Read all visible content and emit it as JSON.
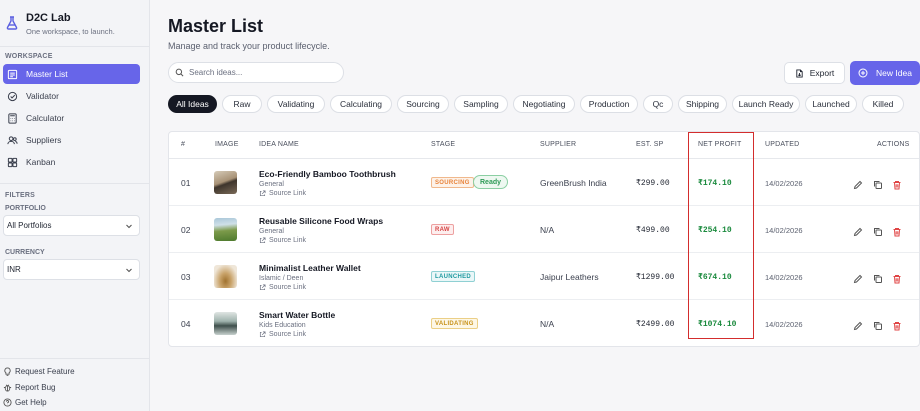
{
  "brand": {
    "title": "D2C Lab",
    "subtitle": "One workspace, to launch."
  },
  "sidebar": {
    "workspace_label": "WORKSPACE",
    "items": [
      {
        "label": "Master List",
        "icon": "list-icon",
        "active": true
      },
      {
        "label": "Validator",
        "icon": "check-circle-icon",
        "active": false
      },
      {
        "label": "Calculator",
        "icon": "calculator-icon",
        "active": false
      },
      {
        "label": "Suppliers",
        "icon": "users-icon",
        "active": false
      },
      {
        "label": "Kanban",
        "icon": "kanban-icon",
        "active": false
      }
    ],
    "filters_label": "FILTERS",
    "portfolio": {
      "label": "PORTFOLIO",
      "value": "All Portfolios"
    },
    "currency": {
      "label": "CURRENCY",
      "value": "INR"
    },
    "footer": [
      {
        "label": "Request Feature",
        "icon": "lightbulb-icon"
      },
      {
        "label": "Report Bug",
        "icon": "bug-icon"
      },
      {
        "label": "Get Help",
        "icon": "help-icon"
      }
    ]
  },
  "header": {
    "title": "Master List",
    "subtitle": "Manage and track your product lifecycle.",
    "search_placeholder": "Search ideas...",
    "export_label": "Export",
    "new_label": "New Idea"
  },
  "stage_filters": [
    "All Ideas",
    "Raw",
    "Validating",
    "Calculating",
    "Sourcing",
    "Sampling",
    "Negotiating",
    "Production",
    "Qc",
    "Shipping",
    "Launch Ready",
    "Launched",
    "Killed"
  ],
  "active_filter": "All Ideas",
  "table": {
    "columns": [
      "#",
      "IMAGE",
      "IDEA NAME",
      "STAGE",
      "SUPPLIER",
      "EST. SP",
      "NET PROFIT",
      "UPDATED",
      "ACTIONS"
    ],
    "rows": [
      {
        "index": "01",
        "name": "Eco-Friendly Bamboo Toothbrush",
        "category": "General",
        "source": "Source Link",
        "stage": "SOURCING",
        "stage_color": "#e8833a",
        "extra_badge": "Ready",
        "supplier": "GreenBrush India",
        "est_sp": "₹299.00",
        "net_profit": "₹174.10",
        "updated": "14/02/2026"
      },
      {
        "index": "02",
        "name": "Reusable Silicone Food Wraps",
        "category": "General",
        "source": "Source Link",
        "stage": "RAW",
        "stage_color": "#d64545",
        "extra_badge": "",
        "supplier": "N/A",
        "est_sp": "₹499.00",
        "net_profit": "₹254.10",
        "updated": "14/02/2026"
      },
      {
        "index": "03",
        "name": "Minimalist Leather Wallet",
        "category": "Islamic / Deen",
        "source": "Source Link",
        "stage": "LAUNCHED",
        "stage_color": "#1f9aa0",
        "extra_badge": "",
        "supplier": "Jaipur Leathers",
        "est_sp": "₹1299.00",
        "net_profit": "₹674.10",
        "updated": "14/02/2026"
      },
      {
        "index": "04",
        "name": "Smart Water Bottle",
        "category": "Kids Education",
        "source": "Source Link",
        "stage": "VALIDATING",
        "stage_color": "#d9a21b",
        "extra_badge": "",
        "supplier": "N/A",
        "est_sp": "₹2499.00",
        "net_profit": "₹1074.10",
        "updated": "14/02/2026"
      }
    ]
  },
  "colors": {
    "accent": "#6765e9",
    "profit": "#1a8a3d",
    "ready": "#2e9b57",
    "highlight": "#d32d2d"
  }
}
